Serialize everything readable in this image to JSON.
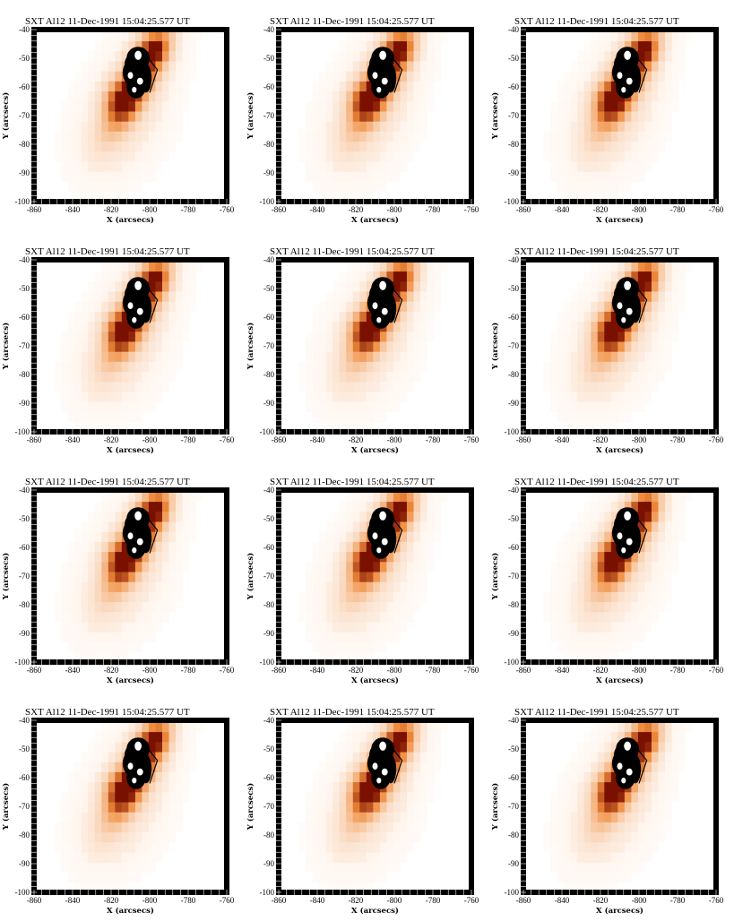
{
  "figure": {
    "rows": 4,
    "cols": 3,
    "colors": {
      "frame": "#000000",
      "background": "#ffffff",
      "map_low": "#fff4ec",
      "map_mid": "#f08a3a",
      "map_high": "#7a1000",
      "contour": "#000000"
    }
  },
  "chart_data": [
    {
      "type": "heatmap",
      "title": "SXT Al12  11-Dec-1991 15:04:25.577 UT",
      "xlabel": "X (arcsecs)",
      "ylabel": "Y (arcsecs)",
      "xlim": [
        -860,
        -760
      ],
      "ylim": [
        -100,
        -40
      ],
      "xticks": [
        "-860",
        "-840",
        "-820",
        "-800",
        "-780",
        "-760"
      ],
      "yticks": [
        "-40",
        "-50",
        "-60",
        "-70",
        "-80",
        "-90",
        "-100"
      ]
    },
    {
      "type": "heatmap",
      "title": "SXT Al12  11-Dec-1991 15:04:25.577 UT",
      "xlabel": "X (arcsecs)",
      "ylabel": "Y (arcsecs)",
      "xlim": [
        -860,
        -760
      ],
      "ylim": [
        -100,
        -40
      ],
      "xticks": [
        "-860",
        "-840",
        "-820",
        "-800",
        "-780",
        "-760"
      ],
      "yticks": [
        "-40",
        "-50",
        "-60",
        "-70",
        "-80",
        "-90",
        "-100"
      ]
    },
    {
      "type": "heatmap",
      "title": "SXT Al12  11-Dec-1991 15:04:25.577 UT",
      "xlabel": "X (arcsecs)",
      "ylabel": "Y (arcsecs)",
      "xlim": [
        -860,
        -760
      ],
      "ylim": [
        -100,
        -40
      ],
      "xticks": [
        "-860",
        "-840",
        "-820",
        "-800",
        "-780",
        "-760"
      ],
      "yticks": [
        "-40",
        "-50",
        "-60",
        "-70",
        "-80",
        "-90",
        "-100"
      ]
    },
    {
      "type": "heatmap",
      "title": "SXT Al12  11-Dec-1991 15:04:25.577 UT",
      "xlabel": "X (arcsecs)",
      "ylabel": "Y (arcsecs)",
      "xlim": [
        -860,
        -760
      ],
      "ylim": [
        -100,
        -40
      ],
      "xticks": [
        "-860",
        "-840",
        "-820",
        "-800",
        "-780",
        "-760"
      ],
      "yticks": [
        "-40",
        "-50",
        "-60",
        "-70",
        "-80",
        "-90",
        "-100"
      ]
    },
    {
      "type": "heatmap",
      "title": "SXT Al12  11-Dec-1991 15:04:25.577 UT",
      "xlabel": "X (arcsecs)",
      "ylabel": "Y (arcsecs)",
      "xlim": [
        -860,
        -760
      ],
      "ylim": [
        -100,
        -40
      ],
      "xticks": [
        "-860",
        "-840",
        "-820",
        "-800",
        "-780",
        "-760"
      ],
      "yticks": [
        "-40",
        "-50",
        "-60",
        "-70",
        "-80",
        "-90",
        "-100"
      ]
    },
    {
      "type": "heatmap",
      "title": "SXT Al12  11-Dec-1991 15:04:25.577 UT",
      "xlabel": "X (arcsecs)",
      "ylabel": "Y (arcsecs)",
      "xlim": [
        -860,
        -760
      ],
      "ylim": [
        -100,
        -40
      ],
      "xticks": [
        "-860",
        "-840",
        "-820",
        "-800",
        "-780",
        "-760"
      ],
      "yticks": [
        "-40",
        "-50",
        "-60",
        "-70",
        "-80",
        "-90",
        "-100"
      ]
    },
    {
      "type": "heatmap",
      "title": "SXT Al12  11-Dec-1991 15:04:25.577 UT",
      "xlabel": "X (arcsecs)",
      "ylabel": "Y (arcsecs)",
      "xlim": [
        -860,
        -760
      ],
      "ylim": [
        -100,
        -40
      ],
      "xticks": [
        "-860",
        "-840",
        "-820",
        "-800",
        "-780",
        "-760"
      ],
      "yticks": [
        "-40",
        "-50",
        "-60",
        "-70",
        "-80",
        "-90",
        "-100"
      ]
    },
    {
      "type": "heatmap",
      "title": "SXT Al12  11-Dec-1991 15:04:25.577 UT",
      "xlabel": "X (arcsecs)",
      "ylabel": "Y (arcsecs)",
      "xlim": [
        -860,
        -760
      ],
      "ylim": [
        -100,
        -40
      ],
      "xticks": [
        "-860",
        "-840",
        "-820",
        "-800",
        "-780",
        "-760"
      ],
      "yticks": [
        "-40",
        "-50",
        "-60",
        "-70",
        "-80",
        "-90",
        "-100"
      ]
    },
    {
      "type": "heatmap",
      "title": "SXT Al12  11-Dec-1991 15:04:25.577 UT",
      "xlabel": "X (arcsecs)",
      "ylabel": "Y (arcsecs)",
      "xlim": [
        -860,
        -760
      ],
      "ylim": [
        -100,
        -40
      ],
      "xticks": [
        "-860",
        "-840",
        "-820",
        "-800",
        "-780",
        "-760"
      ],
      "yticks": [
        "-40",
        "-50",
        "-60",
        "-70",
        "-80",
        "-90",
        "-100"
      ]
    },
    {
      "type": "heatmap",
      "title": "SXT Al12  11-Dec-1991 15:04:25.577 UT",
      "xlabel": "X (arcsecs)",
      "ylabel": "Y (arcsecs)",
      "xlim": [
        -860,
        -760
      ],
      "ylim": [
        -100,
        -40
      ],
      "xticks": [
        "-860",
        "-840",
        "-820",
        "-800",
        "-780",
        "-760"
      ],
      "yticks": [
        "-40",
        "-50",
        "-60",
        "-70",
        "-80",
        "-90",
        "-100"
      ]
    },
    {
      "type": "heatmap",
      "title": "SXT Al12  11-Dec-1991 15:04:25.577 UT",
      "xlabel": "X (arcsecs)",
      "ylabel": "Y (arcsecs)",
      "xlim": [
        -860,
        -760
      ],
      "ylim": [
        -100,
        -40
      ],
      "xticks": [
        "-860",
        "-840",
        "-820",
        "-800",
        "-780",
        "-760"
      ],
      "yticks": [
        "-40",
        "-50",
        "-60",
        "-70",
        "-80",
        "-90",
        "-100"
      ]
    },
    {
      "type": "heatmap",
      "title": "SXT Al12  11-Dec-1991 15:04:25.577 UT",
      "xlabel": "X (arcsecs)",
      "ylabel": "Y (arcsecs)",
      "xlim": [
        -860,
        -760
      ],
      "ylim": [
        -100,
        -40
      ],
      "xticks": [
        "-860",
        "-840",
        "-820",
        "-800",
        "-780",
        "-760"
      ],
      "yticks": [
        "-40",
        "-50",
        "-60",
        "-70",
        "-80",
        "-90",
        "-100"
      ]
    }
  ]
}
